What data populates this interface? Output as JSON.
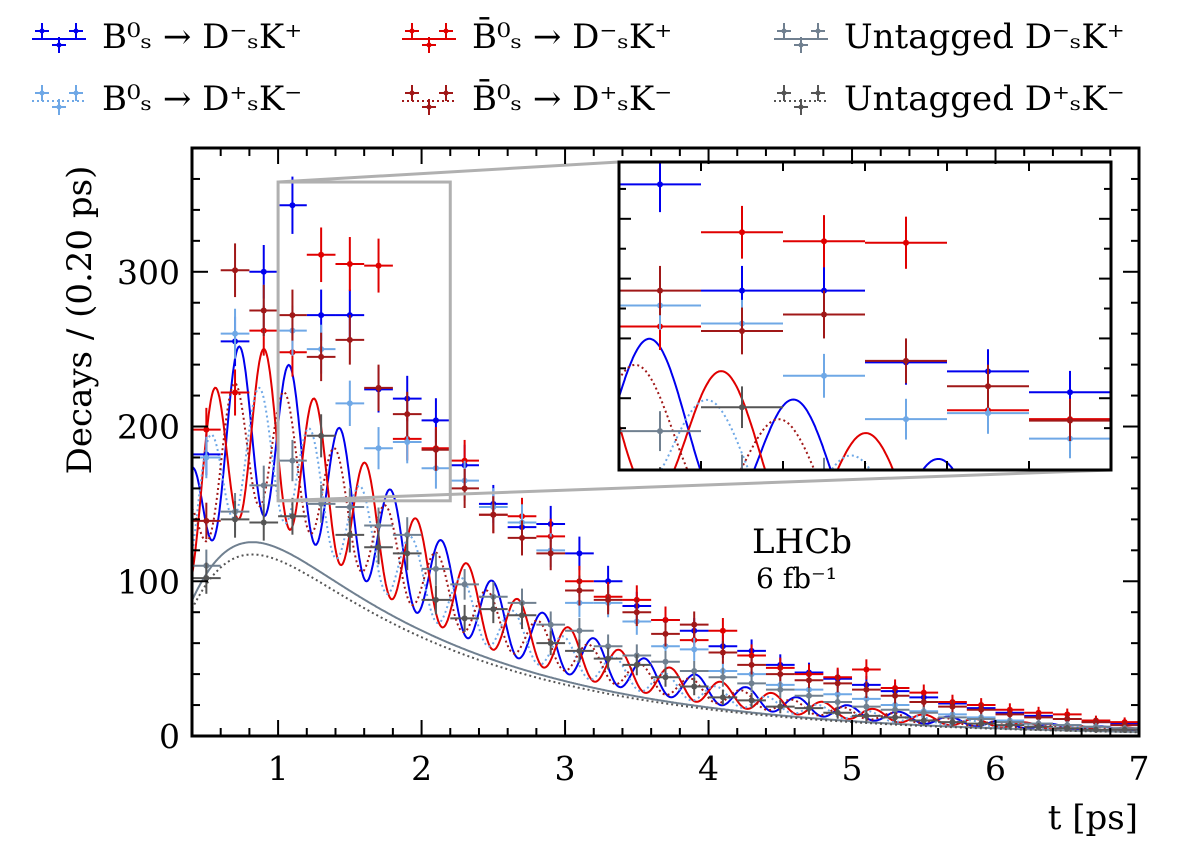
{
  "colors": {
    "tagged_bs_DsmKp": "#0000ee",
    "tagged_bsbar_DsmKp": "#e00000",
    "tagged_bs_DspKm": "#6fa8e6",
    "tagged_bsbar_DspKm": "#a01818",
    "untagged_DsmKp": "#708090",
    "untagged_DspKm": "#555555"
  },
  "legend": [
    {
      "key": "tagged_bs_DsmKp",
      "label": "B⁰ₛ → D⁻ₛK⁺",
      "style": "solid"
    },
    {
      "key": "tagged_bsbar_DsmKp",
      "label": "B̄⁰ₛ → D⁻ₛK⁺",
      "style": "solid"
    },
    {
      "key": "untagged_DsmKp",
      "label": "Untagged D⁻ₛK⁺",
      "style": "solid"
    },
    {
      "key": "tagged_bs_DspKm",
      "label": "B⁰ₛ → D⁺ₛK⁻",
      "style": "dotted"
    },
    {
      "key": "tagged_bsbar_DspKm",
      "label": "B̄⁰ₛ → D⁺ₛK⁻",
      "style": "dotted"
    },
    {
      "key": "untagged_DspKm",
      "label": "Untagged D⁺ₛK⁻",
      "style": "dotted"
    }
  ],
  "annotation": {
    "experiment": "LHCb",
    "luminosity": "6 fb⁻¹"
  },
  "chart_data": {
    "type": "scatter",
    "title": "",
    "xlabel": "t [ps]",
    "ylabel": "Decays / (0.20 ps)",
    "xlim": [
      0.4,
      7.0
    ],
    "ylim": [
      0,
      380
    ],
    "x_ticks": [
      1,
      2,
      3,
      4,
      5,
      6,
      7
    ],
    "y_ticks": [
      0,
      100,
      200,
      300
    ],
    "bin_width": 0.2,
    "inset": {
      "xlim": [
        1.0,
        2.2
      ],
      "ylim": [
        152,
        358
      ]
    },
    "x": [
      0.5,
      0.7,
      0.9,
      1.1,
      1.3,
      1.5,
      1.7,
      1.9,
      2.1,
      2.3,
      2.5,
      2.7,
      2.9,
      3.1,
      3.3,
      3.5,
      3.7,
      3.9,
      4.1,
      4.3,
      4.5,
      4.7,
      4.9,
      5.1,
      5.3,
      5.5,
      5.7,
      5.9,
      6.1,
      6.3,
      6.5,
      6.7,
      6.9
    ],
    "series": [
      {
        "name": "B⁰ₛ → D⁻ₛK⁺",
        "key": "tagged_bs_DsmKp",
        "values": [
          182,
          255,
          300,
          343,
          272,
          272,
          224,
          218,
          204,
          175,
          150,
          135,
          137,
          118,
          100,
          84,
          75,
          68,
          58,
          55,
          46,
          41,
          37,
          33,
          29,
          25,
          21,
          18,
          15,
          13,
          11,
          9,
          8
        ]
      },
      {
        "name": "B̄⁰ₛ → D⁻ₛK⁺",
        "key": "tagged_bsbar_DsmKp",
        "values": [
          198,
          222,
          262,
          248,
          311,
          305,
          304,
          192,
          186,
          178,
          143,
          142,
          129,
          100,
          90,
          88,
          75,
          62,
          68,
          52,
          44,
          40,
          38,
          43,
          31,
          28,
          22,
          20,
          17,
          15,
          14,
          10,
          9
        ]
      },
      {
        "name": "B⁰ₛ → D⁺ₛK⁻",
        "key": "tagged_bs_DspKm",
        "values": [
          180,
          260,
          275,
          262,
          250,
          215,
          186,
          190,
          173,
          165,
          148,
          138,
          120,
          86,
          86,
          74,
          58,
          56,
          42,
          40,
          33,
          30,
          27,
          24,
          20,
          16,
          14,
          12,
          10,
          8,
          7,
          6,
          5
        ]
      },
      {
        "name": "B̄⁰ₛ → D⁺ₛK⁻",
        "key": "tagged_bsbar_DspKm",
        "values": [
          139,
          301,
          275,
          272,
          245,
          256,
          225,
          208,
          185,
          160,
          143,
          128,
          118,
          94,
          88,
          80,
          66,
          72,
          54,
          46,
          40,
          36,
          34,
          30,
          26,
          22,
          19,
          17,
          14,
          12,
          11,
          9,
          7
        ]
      },
      {
        "name": "Untagged D⁻ₛK⁺",
        "key": "untagged_DsmKp",
        "values": [
          110,
          145,
          162,
          178,
          150,
          148,
          136,
          130,
          108,
          98,
          90,
          86,
          72,
          68,
          58,
          52,
          48,
          42,
          38,
          34,
          30,
          26,
          22,
          19,
          17,
          15,
          12,
          11,
          9,
          8,
          7,
          6,
          5
        ]
      },
      {
        "name": "Untagged D⁺ₛK⁻",
        "key": "untagged_DspKm",
        "values": [
          102,
          140,
          138,
          142,
          194,
          130,
          122,
          118,
          88,
          76,
          82,
          78,
          60,
          55,
          50,
          46,
          38,
          32,
          25,
          23,
          19,
          18,
          15,
          13,
          12,
          10,
          9,
          8,
          7,
          6,
          5,
          4,
          4
        ]
      }
    ]
  }
}
